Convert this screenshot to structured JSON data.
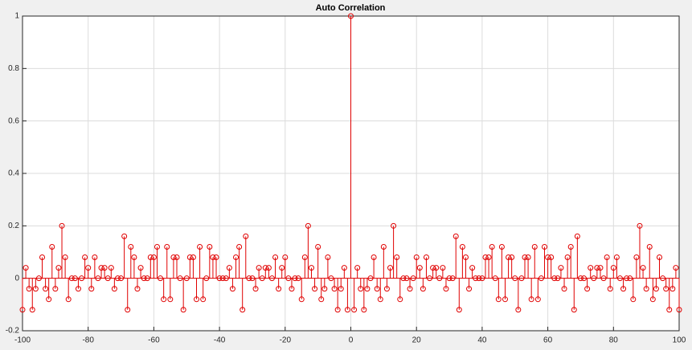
{
  "chart_data": {
    "type": "stem",
    "title": "Auto Correlation",
    "x": [
      -100,
      -99,
      -98,
      -97,
      -96,
      -95,
      -94,
      -93,
      -92,
      -91,
      -90,
      -89,
      -88,
      -87,
      -86,
      -85,
      -84,
      -83,
      -82,
      -81,
      -80,
      -79,
      -78,
      -77,
      -76,
      -75,
      -74,
      -73,
      -72,
      -71,
      -70,
      -69,
      -68,
      -67,
      -66,
      -65,
      -64,
      -63,
      -62,
      -61,
      -60,
      -59,
      -58,
      -57,
      -56,
      -55,
      -54,
      -53,
      -52,
      -51,
      -50,
      -49,
      -48,
      -47,
      -46,
      -45,
      -44,
      -43,
      -42,
      -41,
      -40,
      -39,
      -38,
      -37,
      -36,
      -35,
      -34,
      -33,
      -32,
      -31,
      -30,
      -29,
      -28,
      -27,
      -26,
      -25,
      -24,
      -23,
      -22,
      -21,
      -20,
      -19,
      -18,
      -17,
      -16,
      -15,
      -14,
      -13,
      -12,
      -11,
      -10,
      -9,
      -8,
      -7,
      -6,
      -5,
      -4,
      -3,
      -2,
      -1,
      0,
      1,
      2,
      3,
      4,
      5,
      6,
      7,
      8,
      9,
      10,
      11,
      12,
      13,
      14,
      15,
      16,
      17,
      18,
      19,
      20,
      21,
      22,
      23,
      24,
      25,
      26,
      27,
      28,
      29,
      30,
      31,
      32,
      33,
      34,
      35,
      36,
      37,
      38,
      39,
      40,
      41,
      42,
      43,
      44,
      45,
      46,
      47,
      48,
      49,
      50,
      51,
      52,
      53,
      54,
      55,
      56,
      57,
      58,
      59,
      60,
      61,
      62,
      63,
      64,
      65,
      66,
      67,
      68,
      69,
      70,
      71,
      72,
      73,
      74,
      75,
      76,
      77,
      78,
      79,
      80,
      81,
      82,
      83,
      84,
      85,
      86,
      87,
      88,
      89,
      90,
      91,
      92,
      93,
      94,
      95,
      96,
      97,
      98,
      99,
      100
    ],
    "values": [
      -0.12,
      0.04,
      -0.04,
      -0.12,
      -0.04,
      0,
      0.08,
      -0.04,
      -0.08,
      0.12,
      -0.04,
      0.04,
      0.2,
      0.08,
      -0.08,
      0,
      0,
      -0.04,
      0,
      0.08,
      0.04,
      -0.04,
      0.08,
      0,
      0.04,
      0.04,
      0,
      0.04,
      -0.04,
      0,
      0,
      0.16,
      -0.12,
      0.12,
      0.08,
      -0.04,
      0.04,
      0,
      0,
      0.08,
      0.08,
      0.12,
      0,
      -0.08,
      0.12,
      -0.08,
      0.08,
      0.08,
      0,
      -0.12,
      0,
      0.08,
      0.08,
      -0.08,
      0.12,
      -0.08,
      0,
      0.12,
      0.08,
      0.08,
      0,
      0,
      0,
      0.04,
      -0.04,
      0.08,
      0.12,
      -0.12,
      0.16,
      0,
      0,
      -0.04,
      0.04,
      0,
      0.04,
      0.04,
      0,
      0.08,
      -0.04,
      0.04,
      0.08,
      0,
      -0.04,
      0,
      0,
      -0.08,
      0.08,
      0.2,
      0.04,
      -0.04,
      0.12,
      -0.08,
      -0.04,
      0.08,
      0,
      -0.04,
      -0.12,
      -0.04,
      0.04,
      -0.12,
      1,
      -0.12,
      0.04,
      -0.04,
      -0.12,
      -0.04,
      0,
      0.08,
      -0.04,
      -0.08,
      0.12,
      -0.04,
      0.04,
      0.2,
      0.08,
      -0.08,
      0,
      0,
      -0.04,
      0,
      0.08,
      0.04,
      -0.04,
      0.08,
      0,
      0.04,
      0.04,
      0,
      0.04,
      -0.04,
      0,
      0,
      0.16,
      -0.12,
      0.12,
      0.08,
      -0.04,
      0.04,
      0,
      0,
      0,
      0.08,
      0.08,
      0.12,
      0,
      -0.08,
      0.12,
      -0.08,
      0.08,
      0.08,
      0,
      -0.12,
      0,
      0.08,
      0.08,
      -0.08,
      0.12,
      -0.08,
      0,
      0.12,
      0.08,
      0.08,
      0,
      0,
      0.04,
      -0.04,
      0.08,
      0.12,
      -0.12,
      0.16,
      0,
      0,
      -0.04,
      0.04,
      0,
      0.04,
      0.04,
      0,
      0.08,
      -0.04,
      0.04,
      0.08,
      0,
      -0.04,
      0,
      0,
      -0.08,
      0.08,
      0.2,
      0.04,
      -0.04,
      0.12,
      -0.08,
      -0.04,
      0.08,
      0,
      -0.04,
      -0.12,
      -0.04,
      0.04,
      -0.12
    ],
    "color": "#e00000",
    "xlim": [
      -100,
      100
    ],
    "xticks": [
      -100,
      -80,
      -60,
      -40,
      -20,
      0,
      20,
      40,
      60,
      80,
      100
    ],
    "ylim": [
      -0.2,
      1
    ],
    "yticks": [
      -0.2,
      0,
      0.2,
      0.4,
      0.6,
      0.8,
      1
    ],
    "grid": true
  }
}
